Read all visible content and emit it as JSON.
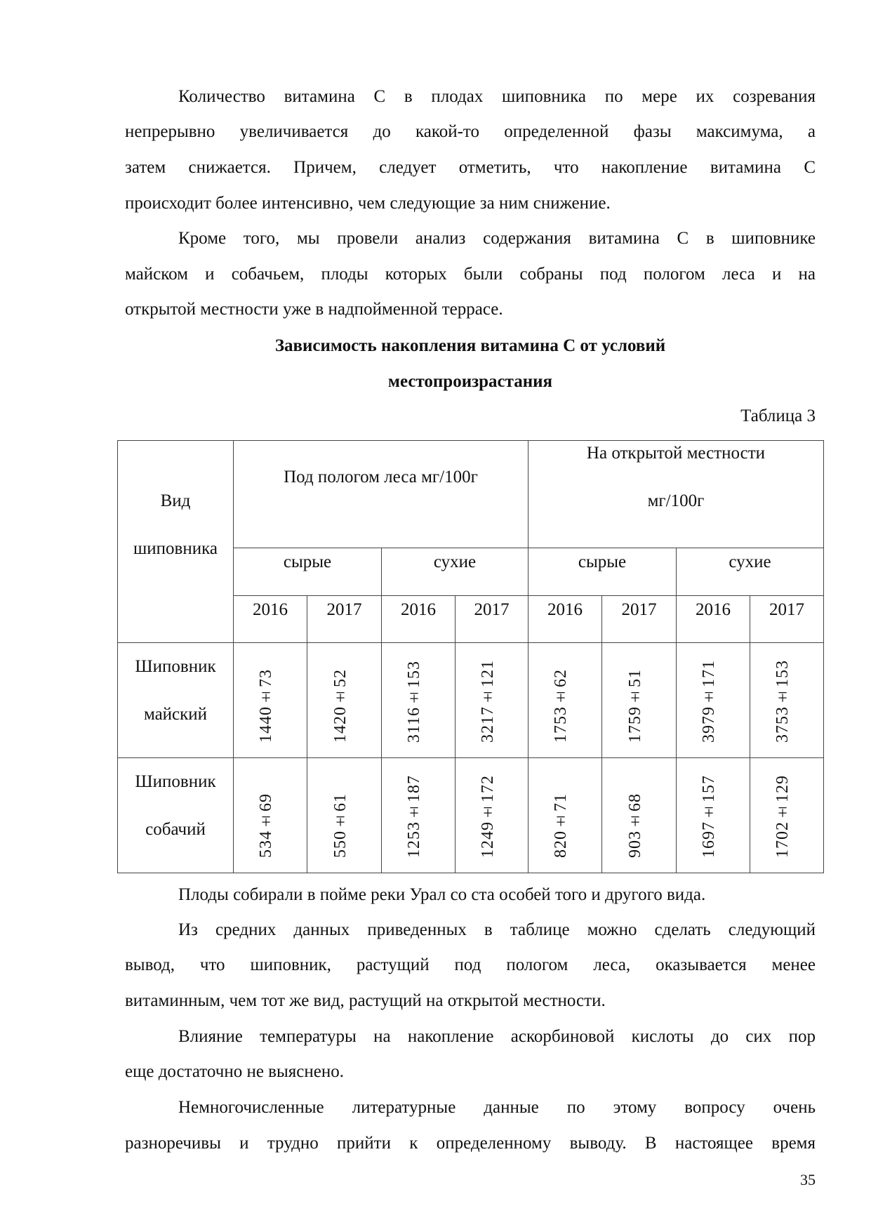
{
  "paragraphs_top": [
    {
      "lines": [
        "Количество витамина С в плодах шиповника по мере их созревания",
        "непрерывно увеличивается  до какой-то определенной фазы максимума, а",
        "затем снижается. Причем, следует отметить, что накопление витамина С",
        "происходит более интенсивно, чем следующие за ним снижение."
      ]
    },
    {
      "lines": [
        "Кроме того, мы провели анализ содержания витамина С в шиповнике",
        "майском и собачьем, плоды которых были собраны под пологом леса и на",
        "открытой местности уже в надпойменной террасе."
      ]
    }
  ],
  "table_title": [
    "Зависимость накопления витамина  С от условий",
    "местопроизрастания"
  ],
  "table_label": "Таблица 3",
  "table": {
    "corner": [
      "Вид",
      "шиповника"
    ],
    "group1": "Под пологом леса мг/100г",
    "group2": [
      "На открытой местности",
      "мг/100г"
    ],
    "sub": [
      "сырые",
      "сухие",
      "сырые",
      "сухие"
    ],
    "years": [
      "2016",
      "2017",
      "2016",
      "2017",
      "2016",
      "2017",
      "2016",
      "2017"
    ],
    "rows": [
      {
        "name": [
          "Шиповник",
          "майский"
        ],
        "values": [
          "1440±73",
          "1420±52",
          "3116±153",
          "3217±121",
          "1753±62",
          "1759±51",
          "3979±171",
          "3753±153"
        ]
      },
      {
        "name": [
          "Шиповник",
          "собачий"
        ],
        "values": [
          "534±69",
          "550±61",
          "1253±187",
          "1249±172",
          "820±71",
          "903±68",
          "1697±157",
          "1702±129"
        ]
      }
    ]
  },
  "paragraphs_bottom": [
    {
      "lines": [
        "Плоды собирали в пойме реки Урал со ста особей того и другого вида."
      ]
    },
    {
      "lines": [
        "Из  средних данных приведенных в таблице можно сделать следующий",
        "вывод, что шиповник, растущий под пологом леса, оказывается менее",
        "витаминным, чем тот же вид, растущий на открытой местности."
      ]
    },
    {
      "lines": [
        "Влияние температуры на накопление аскорбиновой кислоты до сих пор",
        "еще достаточно не выяснено."
      ]
    },
    {
      "lines": [
        "Немногочисленные литературные данные  по этому вопросу очень",
        "разноречивы и трудно прийти к определенному выводу. В настоящее время"
      ]
    }
  ],
  "page_number": "35"
}
